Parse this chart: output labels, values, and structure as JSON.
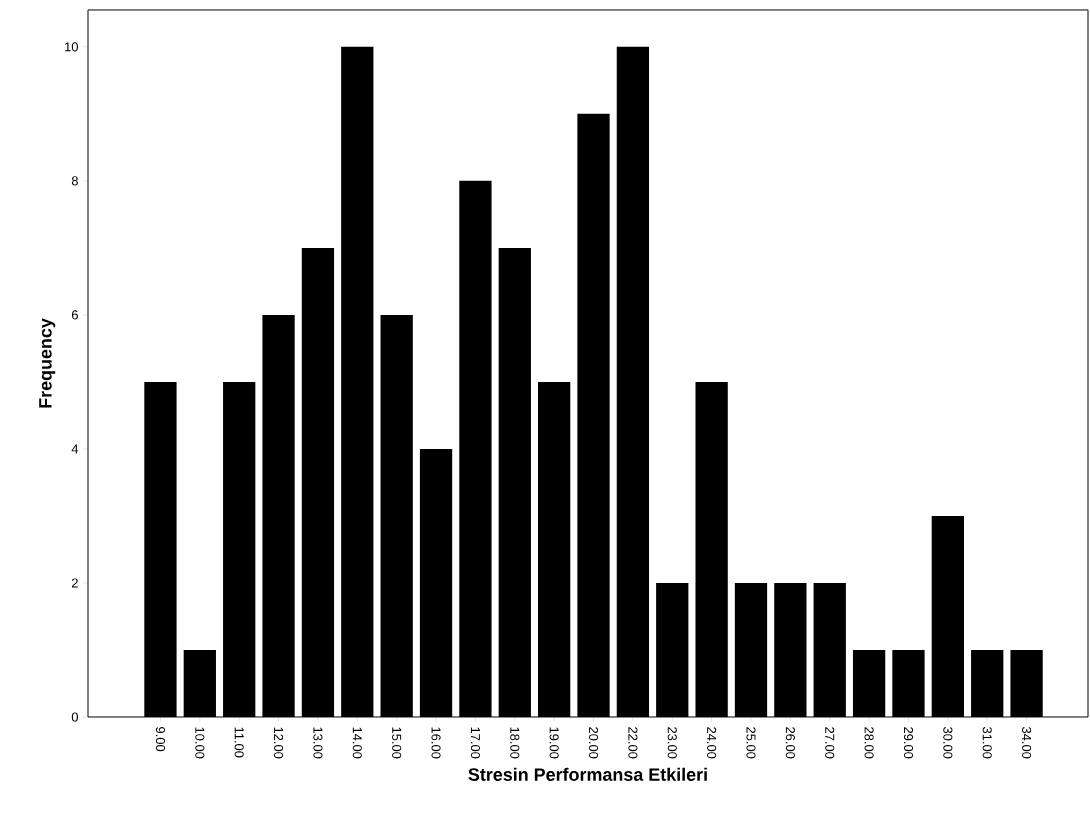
{
  "chart_data": {
    "type": "bar",
    "xlabel": "Stresin Performansa Etkileri",
    "ylabel": "Frequency",
    "categories": [
      "9.00",
      "10.00",
      "11.00",
      "12.00",
      "13.00",
      "14.00",
      "15.00",
      "16.00",
      "17.00",
      "18.00",
      "19.00",
      "20.00",
      "22.00",
      "23.00",
      "24.00",
      "25.00",
      "26.00",
      "27.00",
      "28.00",
      "29.00",
      "30.00",
      "31.00",
      "34.00"
    ],
    "values": [
      5,
      1,
      5,
      6,
      7,
      10,
      6,
      4,
      8,
      7,
      5,
      9,
      10,
      2,
      5,
      2,
      2,
      2,
      1,
      1,
      3,
      1,
      1
    ],
    "color": "#000000",
    "ylim": [
      0,
      10.55
    ],
    "yticks": [
      0,
      2,
      4,
      6,
      8,
      10
    ],
    "grid": false
  }
}
